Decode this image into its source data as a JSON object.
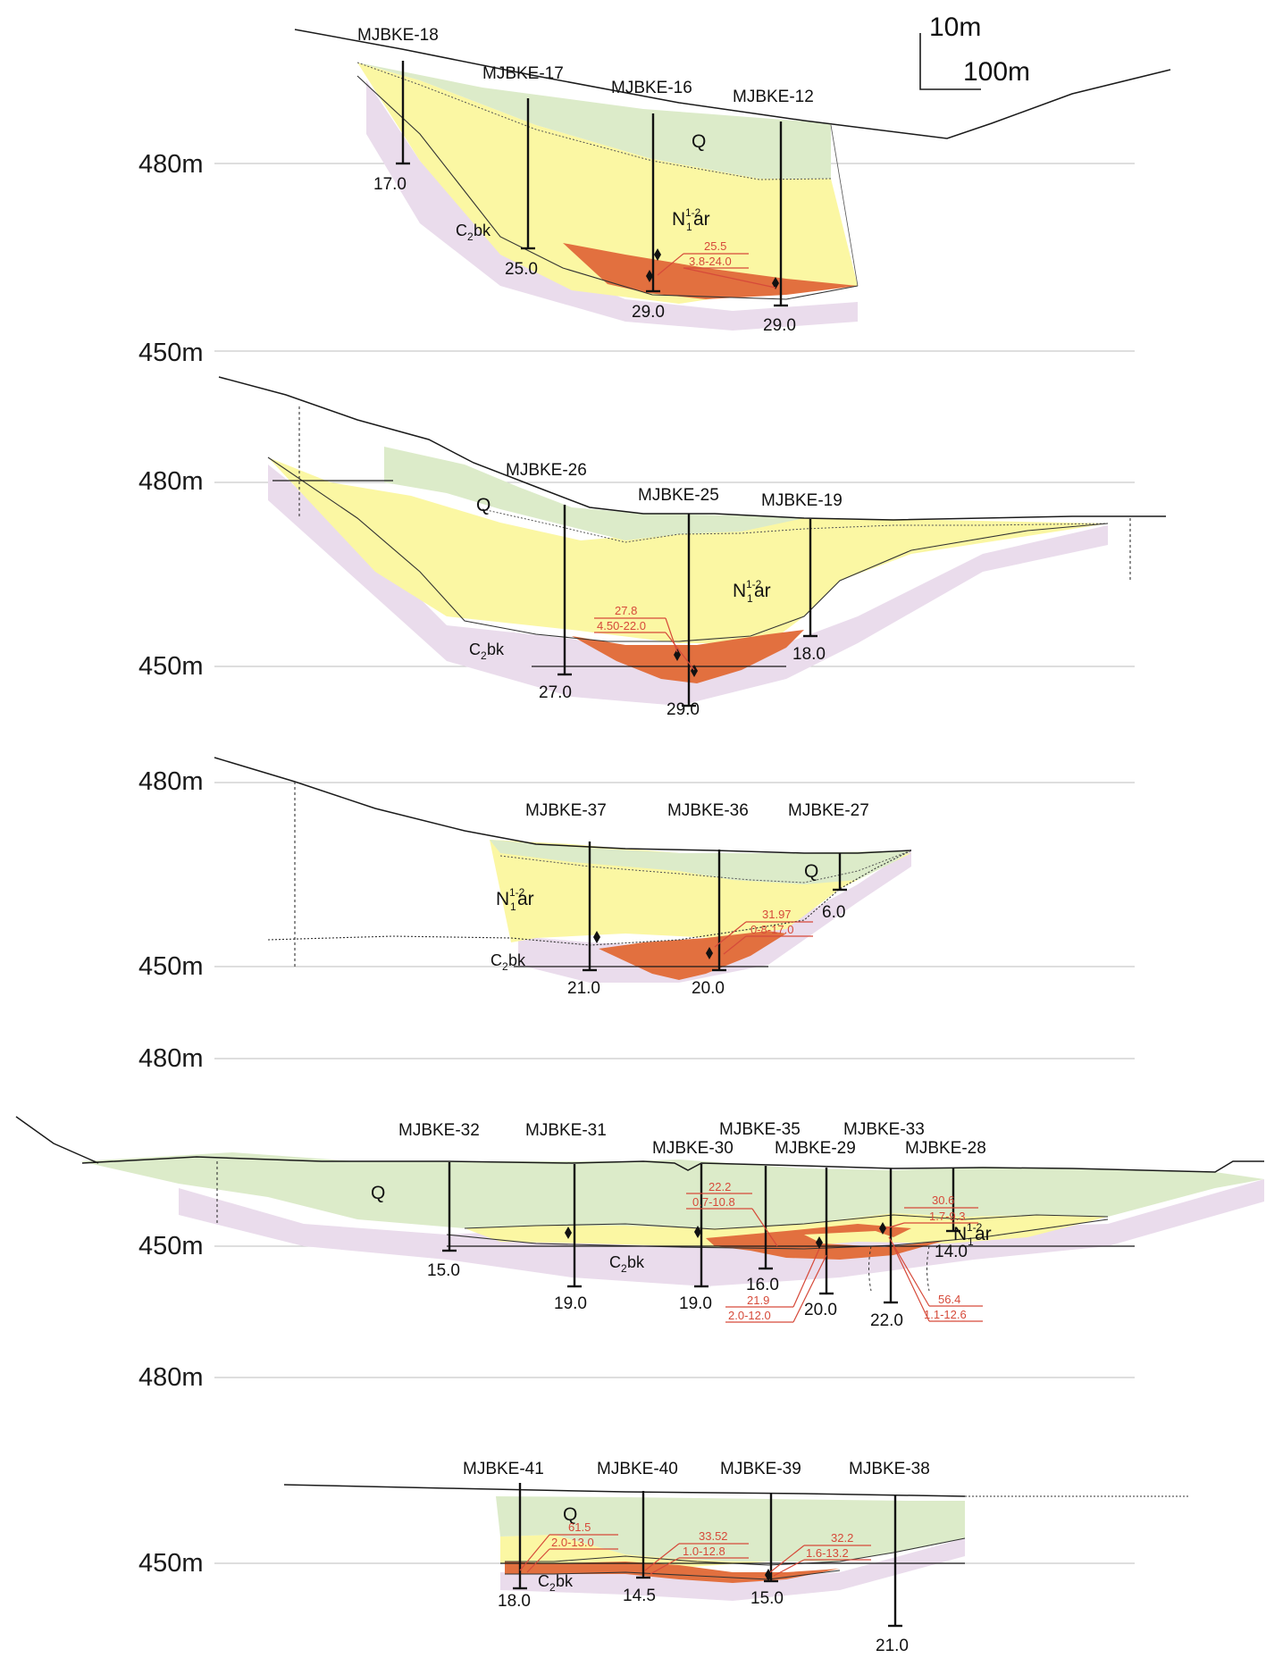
{
  "colors": {
    "quaternary": "#dcebc9",
    "neogene": "#fbf7a3",
    "ore": "#e2703f",
    "carboniferous": "#eadcec",
    "line": "#1a1a1a",
    "gridline": "#c9c9c9",
    "assay": "#d64a3a"
  },
  "scale_bar": {
    "vertical": "10m",
    "horizontal": "100m"
  },
  "units": {
    "q": "Q",
    "n": "N",
    "n_sup": "1-2",
    "n_sub": "1",
    "n_rest": "ar",
    "c": "C",
    "c_sub": "2",
    "c_rest": "bk"
  },
  "sections": [
    {
      "id": "1",
      "elevations": [
        "480m",
        "450m"
      ],
      "wells": [
        {
          "name": "MJBKE-18",
          "depth": "17.0"
        },
        {
          "name": "MJBKE-17",
          "depth": "25.0"
        },
        {
          "name": "MJBKE-16",
          "depth": "29.0"
        },
        {
          "name": "MJBKE-12",
          "depth": "29.0"
        }
      ],
      "assays": [
        {
          "grade": "25.5",
          "interval": "3.8-24.0"
        }
      ]
    },
    {
      "id": "2",
      "elevations": [
        "480m",
        "450m"
      ],
      "wells": [
        {
          "name": "MJBKE-26",
          "depth": "27.0"
        },
        {
          "name": "MJBKE-25",
          "depth": "29.0"
        },
        {
          "name": "MJBKE-19",
          "depth": "18.0"
        }
      ],
      "assays": [
        {
          "grade": "27.8",
          "interval": "4.50-22.0"
        }
      ]
    },
    {
      "id": "3",
      "elevations": [
        "480m",
        "450m"
      ],
      "wells": [
        {
          "name": "MJBKE-37",
          "depth": "21.0"
        },
        {
          "name": "MJBKE-36",
          "depth": "20.0"
        },
        {
          "name": "MJBKE-27",
          "depth": "6.0"
        }
      ],
      "assays": [
        {
          "grade": "31.97",
          "interval": "0-8-17.0"
        }
      ]
    },
    {
      "id": "4",
      "elevations": [
        "480m",
        "450m"
      ],
      "wells": [
        {
          "name": "MJBKE-32",
          "depth": "15.0"
        },
        {
          "name": "MJBKE-31",
          "depth": "19.0"
        },
        {
          "name": "MJBKE-30",
          "depth": "19.0"
        },
        {
          "name": "MJBKE-35",
          "depth": "16.0"
        },
        {
          "name": "MJBKE-29",
          "depth": "20.0"
        },
        {
          "name": "MJBKE-33",
          "depth": "22.0"
        },
        {
          "name": "MJBKE-28",
          "depth": "14.0"
        }
      ],
      "assays": [
        {
          "grade": "22.2",
          "interval": "0.7-10.8"
        },
        {
          "grade": "21.9",
          "interval": "2.0-12.0"
        },
        {
          "grade": "30.6",
          "interval": "1.7-9.3"
        },
        {
          "grade": "56.4",
          "interval": "1.1-12.6"
        }
      ]
    },
    {
      "id": "5",
      "elevations": [
        "480m",
        "450m"
      ],
      "wells": [
        {
          "name": "MJBKE-41",
          "depth": "18.0"
        },
        {
          "name": "MJBKE-40",
          "depth": "14.5"
        },
        {
          "name": "MJBKE-39",
          "depth": "15.0"
        },
        {
          "name": "MJBKE-38",
          "depth": "21.0"
        }
      ],
      "assays": [
        {
          "grade": "61.5",
          "interval": "2.0-13.0"
        },
        {
          "grade": "33.52",
          "interval": "1.0-12.8"
        },
        {
          "grade": "32.2",
          "interval": "1.6-13.2"
        }
      ]
    }
  ]
}
